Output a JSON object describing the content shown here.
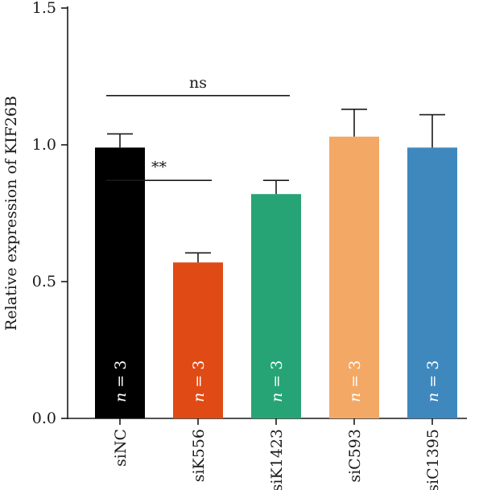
{
  "chart_data": {
    "type": "bar",
    "categories": [
      "siNC",
      "siK556",
      "siK1423",
      "siC593",
      "siC1395"
    ],
    "values": [
      0.99,
      0.57,
      0.82,
      1.03,
      0.99
    ],
    "errors": [
      0.05,
      0.035,
      0.05,
      0.1,
      0.12
    ],
    "colors": [
      "#000000",
      "#e04a15",
      "#27a476",
      "#f3a866",
      "#3f88be"
    ],
    "n_labels": [
      "n = 3",
      "n = 3",
      "n = 3",
      "n = 3",
      "n = 3"
    ],
    "ylabel": "Relative expression of KIF26B",
    "xlabel": "",
    "ylim": [
      0,
      1.5
    ],
    "yticks": [
      "0.0",
      "0.5",
      "1.0",
      "1.5"
    ],
    "ytick_values": [
      0,
      0.5,
      1.0,
      1.5
    ],
    "significance": [
      {
        "from": 0,
        "to": 1,
        "label": "**",
        "y": 0.87
      },
      {
        "from": 0,
        "to": 2,
        "label": "ns",
        "y": 1.18
      }
    ],
    "grid": false
  }
}
